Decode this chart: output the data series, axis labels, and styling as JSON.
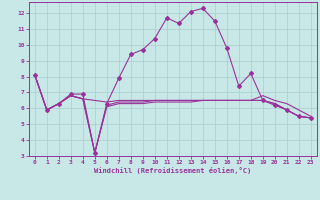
{
  "bg_color": "#c8e8e8",
  "line_color": "#993399",
  "grid_color": "#aacccc",
  "xlabel": "Windchill (Refroidissement éolien,°C)",
  "xlim": [
    -0.5,
    23.5
  ],
  "ylim": [
    3,
    12.7
  ],
  "xticks": [
    0,
    1,
    2,
    3,
    4,
    5,
    6,
    7,
    8,
    9,
    10,
    11,
    12,
    13,
    14,
    15,
    16,
    17,
    18,
    19,
    20,
    21,
    22,
    23
  ],
  "yticks": [
    3,
    4,
    5,
    6,
    7,
    8,
    9,
    10,
    11,
    12
  ],
  "line1_x": [
    0,
    1,
    2,
    3,
    4,
    5,
    6,
    7,
    8,
    9,
    10,
    11,
    12,
    13,
    14,
    15,
    16,
    17,
    18,
    19,
    20,
    21,
    22,
    23
  ],
  "line1_y": [
    8.1,
    5.9,
    6.3,
    6.9,
    6.9,
    3.2,
    6.3,
    7.9,
    9.4,
    9.7,
    10.4,
    11.7,
    11.35,
    12.1,
    12.3,
    11.5,
    9.8,
    7.4,
    8.2,
    6.5,
    6.2,
    5.9,
    5.5,
    5.4
  ],
  "line2_x": [
    0,
    1,
    2,
    3,
    4,
    5,
    6,
    7,
    8,
    9,
    10,
    11,
    12,
    13,
    14,
    15,
    16,
    17,
    18,
    19,
    20,
    21,
    22,
    23
  ],
  "line2_y": [
    8.1,
    5.9,
    6.3,
    6.8,
    6.6,
    6.5,
    6.4,
    6.5,
    6.5,
    6.5,
    6.5,
    6.5,
    6.5,
    6.5,
    6.5,
    6.5,
    6.5,
    6.5,
    6.5,
    6.5,
    6.3,
    5.9,
    5.5,
    5.4
  ],
  "line3_x": [
    0,
    1,
    2,
    3,
    4,
    5,
    6,
    7,
    8,
    9,
    10,
    11,
    12,
    13,
    14,
    15,
    16,
    17,
    18,
    19,
    20,
    21,
    22,
    23
  ],
  "line3_y": [
    8.1,
    5.9,
    6.3,
    6.8,
    6.6,
    3.2,
    6.2,
    6.4,
    6.4,
    6.4,
    6.5,
    6.5,
    6.5,
    6.5,
    6.5,
    6.5,
    6.5,
    6.5,
    6.5,
    6.5,
    6.3,
    5.9,
    5.5,
    5.4
  ],
  "line4_x": [
    0,
    1,
    2,
    3,
    4,
    5,
    6,
    7,
    8,
    9,
    10,
    11,
    12,
    13,
    14,
    15,
    16,
    17,
    18,
    19,
    20,
    21,
    22,
    23
  ],
  "line4_y": [
    8.1,
    5.9,
    6.3,
    6.8,
    6.6,
    3.2,
    6.1,
    6.3,
    6.3,
    6.3,
    6.4,
    6.4,
    6.4,
    6.4,
    6.5,
    6.5,
    6.5,
    6.5,
    6.5,
    6.8,
    6.5,
    6.3,
    5.9,
    5.5
  ]
}
